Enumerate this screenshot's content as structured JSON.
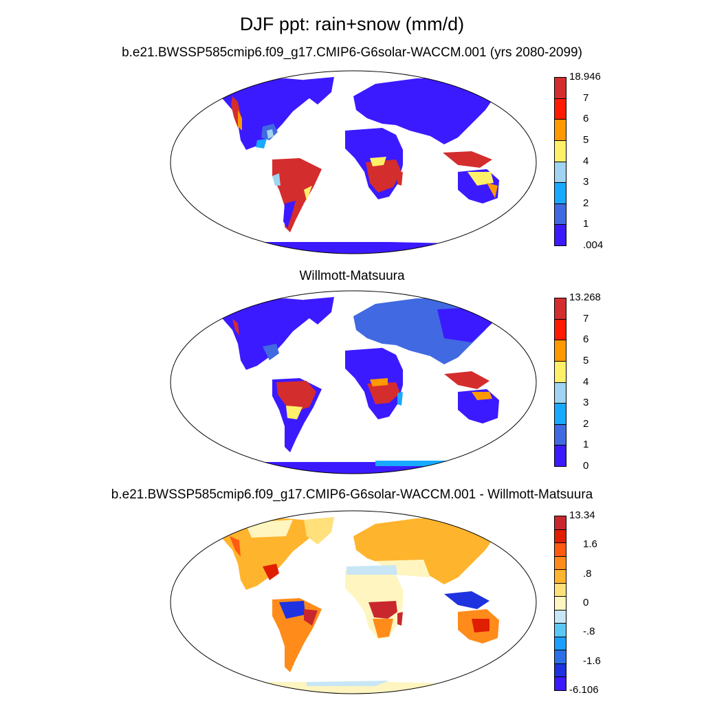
{
  "title": "DJF ppt: rain+snow (mm/d)",
  "panels": [
    {
      "subtitle": "b.e21.BWSSP585cmip6.f09_g17.CMIP6-G6solar-WACCM.001 (yrs 2080-2099)",
      "colorbar": {
        "labels": [
          "18.946",
          "7",
          "6",
          "5",
          "4",
          "3",
          "2",
          "1",
          ".004"
        ],
        "colors": [
          "#d42d2d",
          "#ff1a00",
          "#ff9900",
          "#fff06a",
          "#a0d4f0",
          "#19a9ff",
          "#4169e1",
          "#3b1aff"
        ]
      }
    },
    {
      "subtitle": "Willmott-Matsuura",
      "colorbar": {
        "labels": [
          "13.268",
          "7",
          "6",
          "5",
          "4",
          "3",
          "2",
          "1",
          "0"
        ],
        "colors": [
          "#d42d2d",
          "#ff1a00",
          "#ff9900",
          "#fff06a",
          "#a0d4f0",
          "#19a9ff",
          "#4169e1",
          "#3b1aff"
        ]
      }
    },
    {
      "subtitle": "b.e21.BWSSP585cmip6.f09_g17.CMIP6-G6solar-WACCM.001 - Willmott-Matsuura",
      "colorbar": {
        "labels": [
          "13.34",
          "1.6",
          ".8",
          "0",
          "-.8",
          "-1.6",
          "-6.106"
        ],
        "colors": [
          "#c8282d",
          "#e01e00",
          "#ff5a10",
          "#ff8c1a",
          "#ffb42d",
          "#ffe07a",
          "#fff5c0",
          "#c8e6f5",
          "#5ac8f5",
          "#19a0ff",
          "#2b70e6",
          "#1e32e0",
          "#3b1aff"
        ]
      }
    }
  ]
}
